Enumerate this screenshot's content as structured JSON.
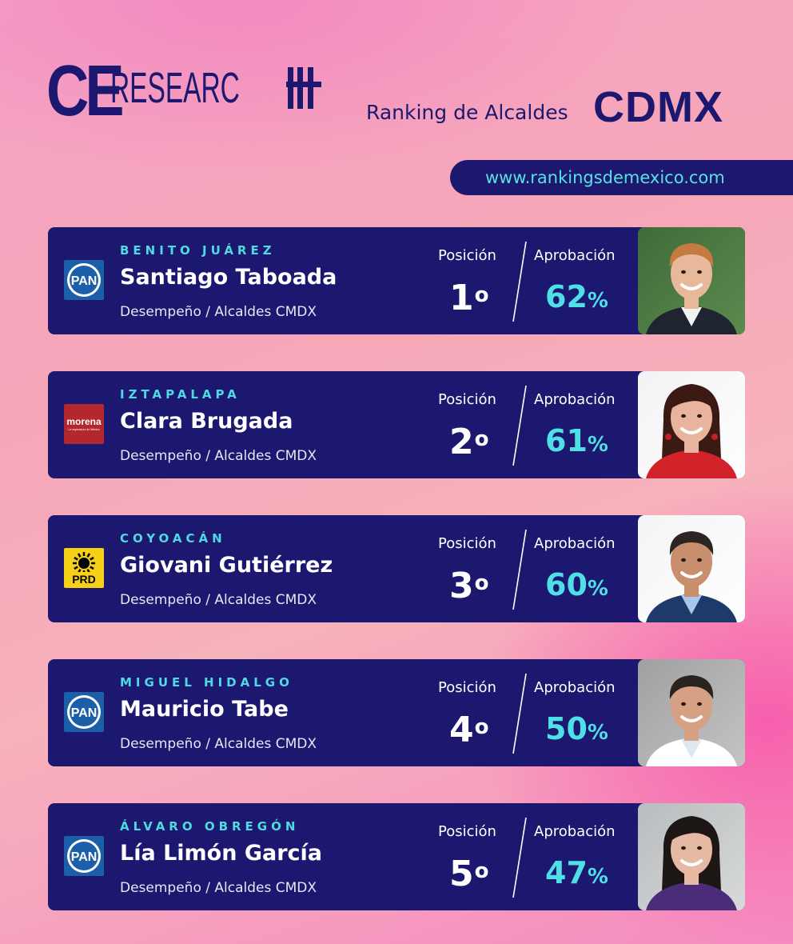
{
  "header": {
    "logo_ce": "CE",
    "logo_research": "RESEARC",
    "subtitle": "Ranking de Alcaldes",
    "region": "CDMX",
    "url": "www.rankingsdemexico.com"
  },
  "labels": {
    "position": "Posición",
    "approval": "Aprobación",
    "percent": "%",
    "ordinal": "o"
  },
  "colors": {
    "navy": "#1c1870",
    "cyan": "#4fdfe6",
    "pan_blue": "#1b5fa8",
    "morena_red": "#b3282d",
    "prd_yellow": "#f7d117"
  },
  "mayors": [
    {
      "district": "BENITO JUÁREZ",
      "name": "Santiago Taboada",
      "subtitle": "Desempeño / Alcaldes CMDX",
      "party": "PAN",
      "party_icon": "pan-logo-icon",
      "position": "1",
      "approval": "62"
    },
    {
      "district": "IZTAPALAPA",
      "name": "Clara Brugada",
      "subtitle": "Desempeño / Alcaldes CMDX",
      "party": "morena",
      "party_sub": "La esperanza de México",
      "party_icon": "morena-logo-icon",
      "position": "2",
      "approval": "61"
    },
    {
      "district": "COYOACÁN",
      "name": "Giovani Gutiérrez",
      "subtitle": "Desempeño / Alcaldes CMDX",
      "party": "PRD",
      "party_icon": "prd-logo-icon",
      "position": "3",
      "approval": "60"
    },
    {
      "district": "MIGUEL HIDALGO",
      "name": "Mauricio Tabe",
      "subtitle": "Desempeño / Alcaldes CMDX",
      "party": "PAN",
      "party_icon": "pan-logo-icon",
      "position": "4",
      "approval": "50"
    },
    {
      "district": "ÁLVARO OBREGÓN",
      "name": "Lía Limón García",
      "subtitle": "Desempeño / Alcaldes CMDX",
      "party": "PAN",
      "party_icon": "pan-logo-icon",
      "position": "5",
      "approval": "47"
    }
  ]
}
